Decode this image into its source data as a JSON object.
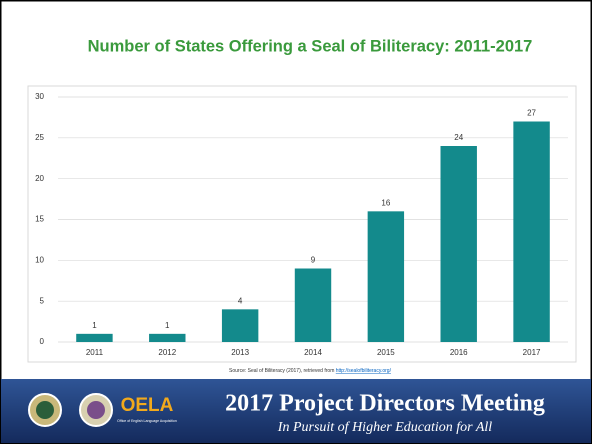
{
  "chart_data": {
    "type": "bar",
    "title": "Number of States Offering a Seal of Biliteracy: 2011-2017",
    "categories": [
      "2011",
      "2012",
      "2013",
      "2014",
      "2015",
      "2016",
      "2017"
    ],
    "values": [
      1,
      1,
      4,
      9,
      16,
      24,
      27
    ],
    "color": "#138a8c",
    "ylim": [
      0,
      30
    ],
    "yticks": [
      0,
      5,
      10,
      15,
      20,
      25,
      30
    ],
    "grid": true,
    "source": "Source: Seal of Biliteracy (2017), retrieved from",
    "source_link": "http://sealofbiliteracy.org/"
  },
  "footer": {
    "logo": "OELA",
    "logo_subtitle": "Office of English Language Acquisition",
    "title": "2017 Project Directors Meeting",
    "subtitle": "In Pursuit of Higher Education for All"
  }
}
